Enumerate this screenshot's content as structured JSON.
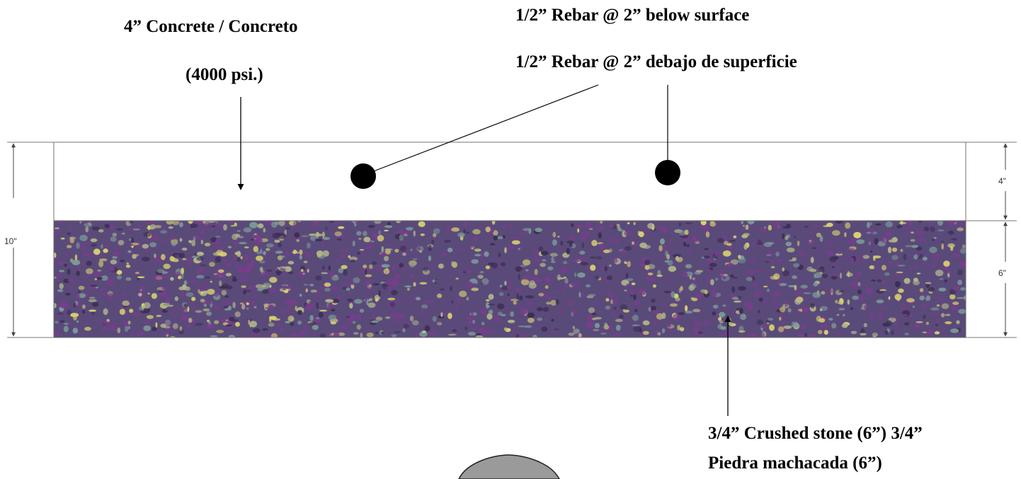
{
  "labels": {
    "concrete": "4” Concrete / Concreto",
    "psi": "(4000 psi.)",
    "rebar_en": "1/2” Rebar @ 2” below surface",
    "rebar_es": "1/2” Rebar @ 2” debajo de superficie",
    "stone_line1": "3/4” Crushed stone (6”) 3/4”",
    "stone_line2": "Piedra machacada (6”)"
  },
  "dimensions": {
    "total": "10\"",
    "concrete": "4\"",
    "stone": "6\""
  },
  "colors": {
    "stone_base": "#5a4a7a",
    "stone_yellow": "#d8d070",
    "stone_teal": "#7a9a98",
    "stone_purple": "#7a3c8c",
    "rebar": "#000000",
    "badge": "#9a9a9a"
  }
}
